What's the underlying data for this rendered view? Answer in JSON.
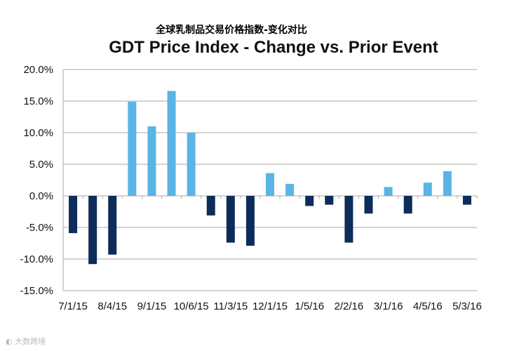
{
  "chart_data": {
    "type": "bar",
    "title": "GDT Price Index - Change vs. Prior Event",
    "subtitle": "全球乳制品交易价格指数-变化对比",
    "xlabel": "",
    "ylabel": "",
    "ylim": [
      -15,
      20
    ],
    "yticks": [
      "20.0%",
      "15.0%",
      "10.0%",
      "5.0%",
      "0.0%",
      "-5.0%",
      "-10.0%",
      "-15.0%"
    ],
    "ytick_values": [
      20,
      15,
      10,
      5,
      0,
      -5,
      -10,
      -15
    ],
    "categories": [
      "7/1/15",
      "",
      "8/4/15",
      "",
      "9/1/15",
      "",
      "10/6/15",
      "",
      "11/3/15",
      "",
      "12/1/15",
      "",
      "1/5/16",
      "",
      "2/2/16",
      "",
      "3/1/16",
      "",
      "4/5/16",
      "",
      "5/3/16"
    ],
    "values": [
      -5.9,
      -10.8,
      -9.3,
      14.9,
      11.0,
      16.6,
      10.0,
      -3.1,
      -7.4,
      -7.9,
      3.6,
      1.9,
      -1.6,
      -1.4,
      -7.4,
      -2.8,
      1.4,
      -2.8,
      2.1,
      3.9,
      -1.4
    ],
    "unit": "%",
    "grid": true,
    "colors": {
      "positive": "#5ab4e5",
      "negative": "#0c2d5a",
      "grid": "#a8a8a8"
    }
  },
  "watermark": "大数跨境"
}
